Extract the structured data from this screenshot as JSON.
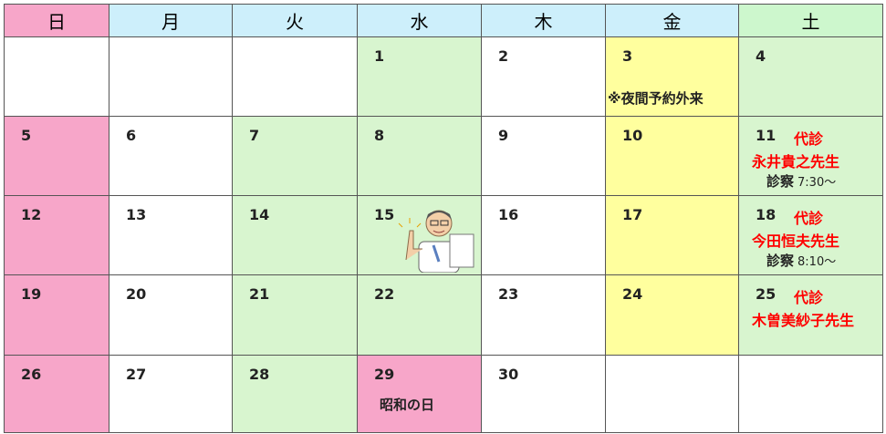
{
  "header": {
    "days": [
      "日",
      "月",
      "火",
      "水",
      "木",
      "金",
      "土"
    ]
  },
  "weeks": [
    [
      null,
      null,
      null,
      {
        "day": 1
      },
      {
        "day": 2
      },
      {
        "day": 3,
        "note": "※夜間予約外来"
      },
      {
        "day": 4
      }
    ],
    [
      {
        "day": 5
      },
      {
        "day": 6
      },
      {
        "day": 7
      },
      {
        "day": 8
      },
      {
        "day": 9
      },
      {
        "day": 10
      },
      {
        "day": 11,
        "tag": "代診",
        "doctor": "永井貴之先生",
        "exam": "診察",
        "time": "7:30～"
      }
    ],
    [
      {
        "day": 12
      },
      {
        "day": 13
      },
      {
        "day": 14
      },
      {
        "day": 15
      },
      {
        "day": 16
      },
      {
        "day": 17
      },
      {
        "day": 18,
        "tag": "代診",
        "doctor": "今田恒夫先生",
        "exam": "診察",
        "time": "8:10～"
      }
    ],
    [
      {
        "day": 19
      },
      {
        "day": 20
      },
      {
        "day": 21
      },
      {
        "day": 22
      },
      {
        "day": 23
      },
      {
        "day": 24
      },
      {
        "day": 25,
        "tag": "代診",
        "doctor": "木曽美紗子先生"
      }
    ],
    [
      {
        "day": 26
      },
      {
        "day": 27
      },
      {
        "day": 28
      },
      {
        "day": 29,
        "note": "昭和の日"
      },
      {
        "day": 30
      },
      null,
      null
    ]
  ]
}
